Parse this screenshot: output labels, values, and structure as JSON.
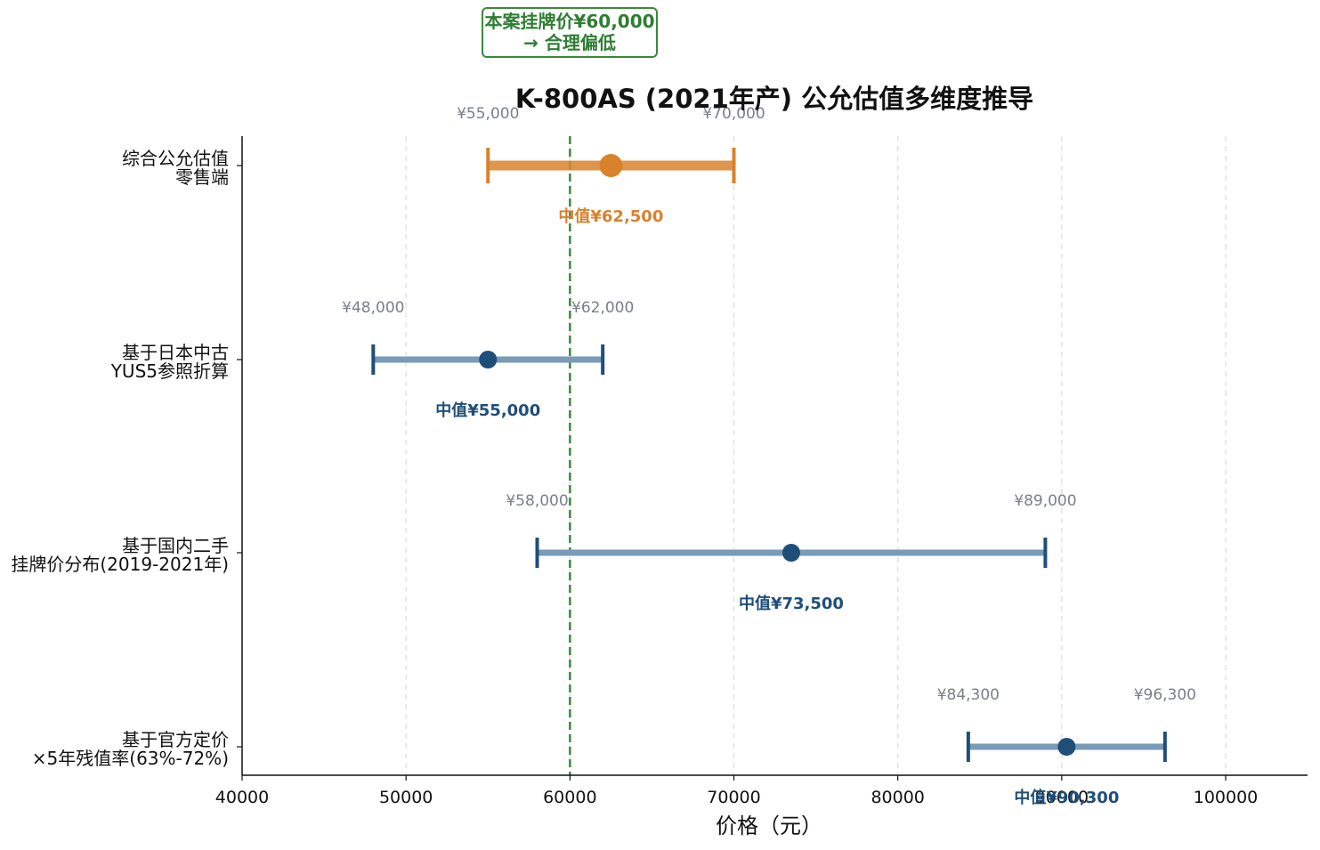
{
  "chart_data": {
    "type": "range",
    "title": "K-800AS (2021年产) 公允估值多维度推导",
    "xlabel": "价格（元）",
    "ylabel": "",
    "xlim": [
      40000,
      105000
    ],
    "xticks": [
      40000,
      50000,
      60000,
      70000,
      80000,
      90000,
      100000
    ],
    "grid": "x-dashed",
    "rows": [
      {
        "label_lines": [
          "综合公允估值",
          "零售端"
        ],
        "low": 55000,
        "high": 70000,
        "median": 62500,
        "low_label": "¥55,000",
        "high_label": "¥70,000",
        "median_label": "中值¥62,500",
        "color": "#d9822b",
        "highlight": true
      },
      {
        "label_lines": [
          "基于日本中古",
          "YUS5参照折算"
        ],
        "low": 48000,
        "high": 62000,
        "median": 55000,
        "low_label": "¥48,000",
        "high_label": "¥62,000",
        "median_label": "中值¥55,000",
        "color": "#1f4e79",
        "highlight": false
      },
      {
        "label_lines": [
          "基于国内二手",
          "挂牌价分布(2019-2021年)"
        ],
        "low": 58000,
        "high": 89000,
        "median": 73500,
        "low_label": "¥58,000",
        "high_label": "¥89,000",
        "median_label": "中值¥73,500",
        "color": "#1f4e79",
        "highlight": false
      },
      {
        "label_lines": [
          "基于官方定价",
          "×5年残值率(63%-72%)"
        ],
        "low": 84300,
        "high": 96300,
        "median": 90300,
        "low_label": "¥84,300",
        "high_label": "¥96,300",
        "median_label": "中值¥90,300",
        "color": "#1f4e79",
        "highlight": false
      }
    ],
    "reference_line": {
      "value": 60000,
      "annotation_lines": [
        "本案挂牌价¥60,000",
        "→ 合理偏低"
      ],
      "color": "#3a8a3a"
    }
  }
}
